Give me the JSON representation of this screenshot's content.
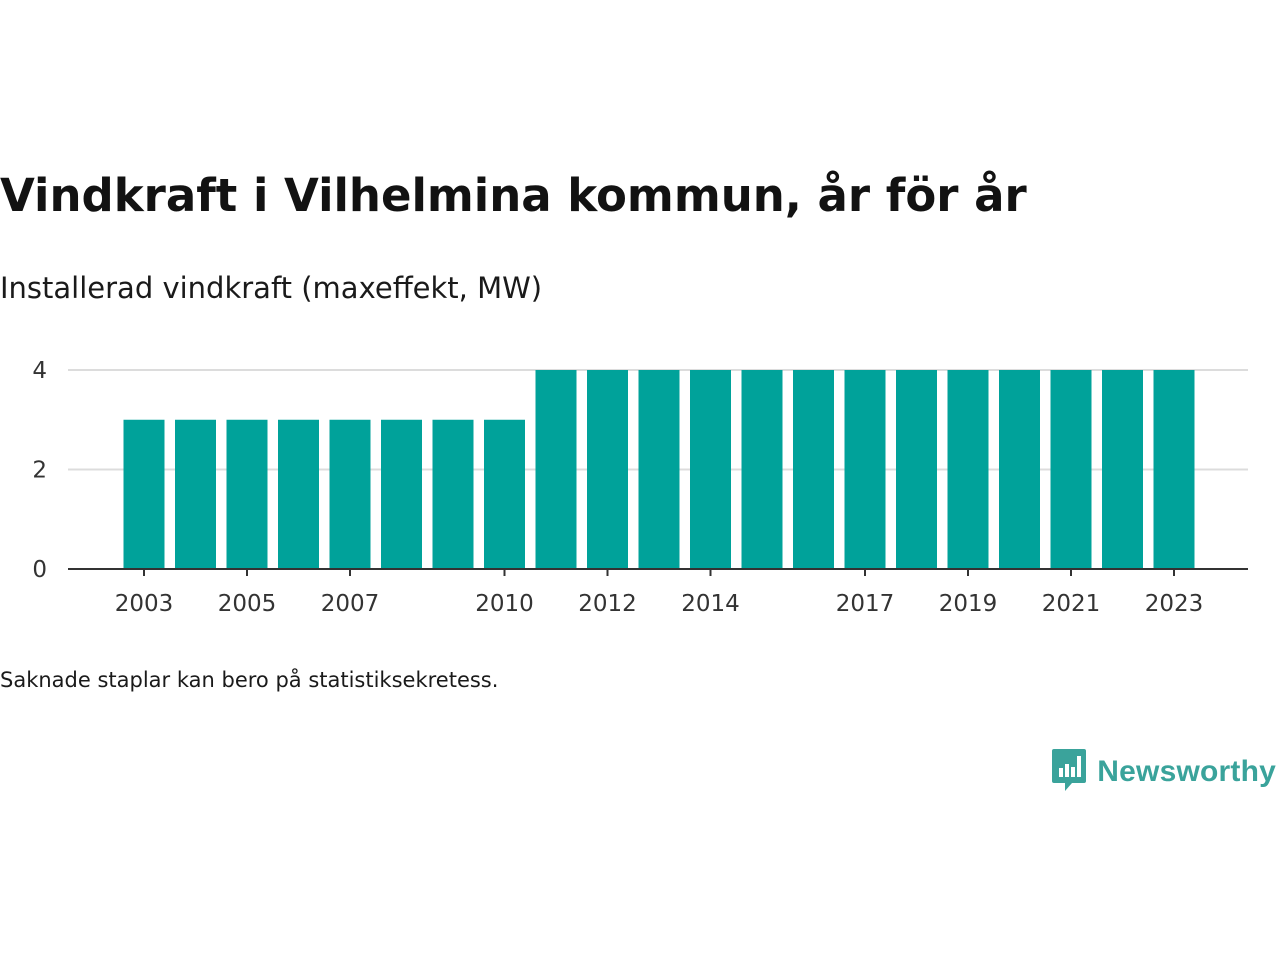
{
  "title": "Vindkraft i Vilhelmina kommun, år för år",
  "subtitle": "Installerad vindkraft (maxeffekt, MW)",
  "note": "Saknade staplar kan bero på statistiksekretess.",
  "brand": {
    "name": "Newsworthy",
    "icon": "newsworthy-logo-icon",
    "color": "#3aa39b"
  },
  "chart_data": {
    "type": "bar",
    "categories": [
      "2003",
      "2004",
      "2005",
      "2006",
      "2007",
      "2008",
      "2009",
      "2010",
      "2011",
      "2012",
      "2013",
      "2014",
      "2015",
      "2016",
      "2017",
      "2018",
      "2019",
      "2020",
      "2021",
      "2022",
      "2023"
    ],
    "values": [
      3,
      3,
      3,
      3,
      3,
      3,
      3,
      3,
      4,
      4,
      4,
      4,
      4,
      4,
      4,
      4,
      4,
      4,
      4,
      4,
      4
    ],
    "x_tick_labels": [
      "2003",
      "2005",
      "2007",
      "2010",
      "2012",
      "2014",
      "2017",
      "2019",
      "2021",
      "2023"
    ],
    "y_ticks": [
      0,
      2,
      4
    ],
    "ylim": [
      0,
      4
    ],
    "xlabel": "",
    "ylabel": "",
    "grid": true,
    "bar_color": "#00a29a",
    "grid_color": "#dcdcdc",
    "axis_color": "#333333"
  }
}
